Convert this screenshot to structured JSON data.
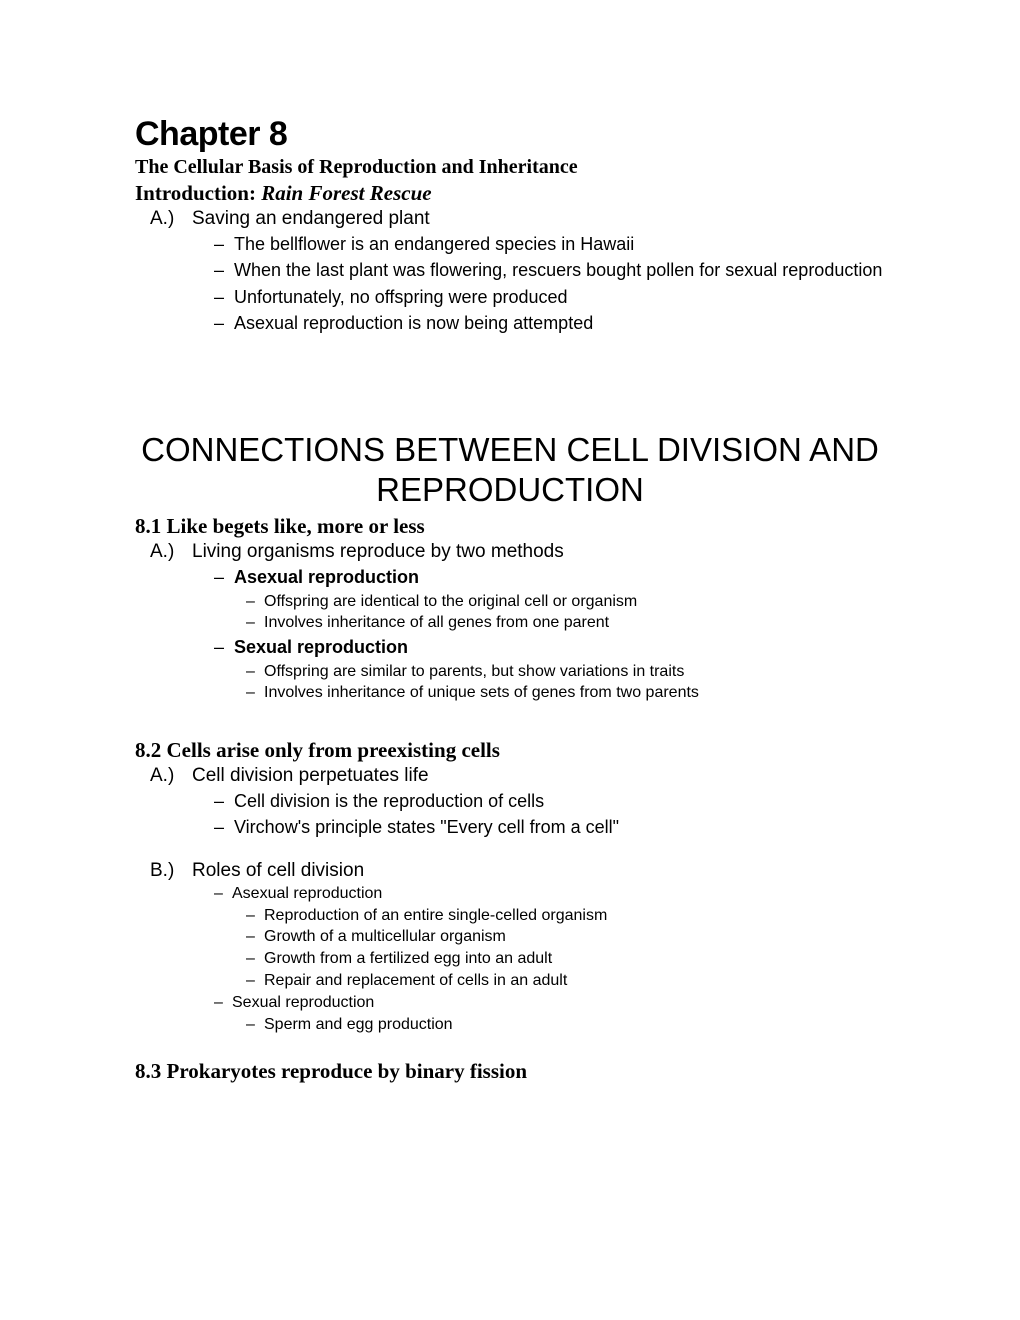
{
  "chapter": {
    "title": "Chapter 8",
    "subtitle": "The Cellular Basis of Reproduction and Inheritance",
    "intro_label": "Introduction: ",
    "intro_italic": "Rain Forest Rescue"
  },
  "intro": {
    "A_marker": "A.)",
    "A_text": "Saving an endangered plant",
    "bullets": [
      "The bellflower is an endangered species in Hawaii",
      "When the last plant was flowering, rescuers bought pollen for sexual reproduction",
      "Unfortunately, no offspring were produced",
      "Asexual reproduction is now being attempted"
    ]
  },
  "main_heading": "CONNECTIONS BETWEEN CELL DIVISION AND REPRODUCTION",
  "s81": {
    "heading": "8.1 Like begets like, more or less",
    "A_marker": "A.)",
    "A_text": "Living organisms reproduce by two methods",
    "asexual_label": "Asexual reproduction",
    "asexual_sub": [
      "Offspring are identical to the original cell or organism",
      "Involves inheritance of all genes from one parent"
    ],
    "sexual_label": "Sexual reproduction",
    "sexual_sub": [
      "Offspring are similar to parents, but show variations in traits",
      "Involves inheritance of unique sets of genes from two parents"
    ]
  },
  "s82": {
    "heading": "8.2 Cells arise only from preexisting cells",
    "A_marker": "A.)",
    "A_text": "Cell division perpetuates life",
    "A_bullets": [
      "Cell division is the reproduction of cells",
      "Virchow's principle states \"Every cell from a cell\""
    ],
    "B_marker": "B.)",
    "B_text": "Roles of cell division",
    "B_asexual_label": "Asexual reproduction",
    "B_asexual_sub": [
      "Reproduction of an entire single-celled organism",
      "Growth of a multicellular organism",
      "Growth from a fertilized egg into an adult",
      "Repair and replacement of cells in an adult"
    ],
    "B_sexual_label": "Sexual reproduction",
    "B_sexual_sub": [
      "Sperm and egg production"
    ]
  },
  "s83": {
    "heading": "8.3 Prokaryotes reproduce by binary fission"
  }
}
